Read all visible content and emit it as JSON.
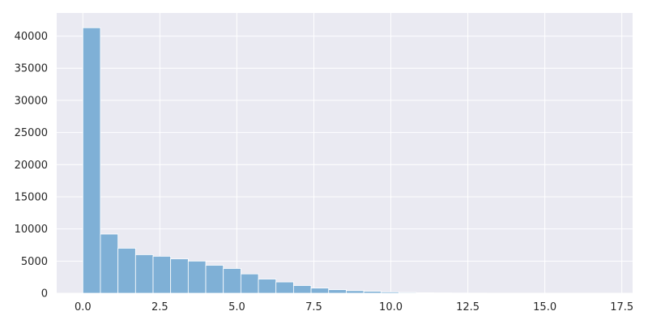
{
  "chart_data": {
    "type": "histogram",
    "title": "",
    "xlabel": "",
    "ylabel": "",
    "xlim": [
      -0.85,
      17.85
    ],
    "ylim": [
      0,
      43600
    ],
    "grid": true,
    "bar_color": "#7fb0d6",
    "background_color": "#eaeaf2",
    "grid_color": "#ffffff",
    "x_ticks": [
      0.0,
      2.5,
      5.0,
      7.5,
      10.0,
      12.5,
      15.0,
      17.5
    ],
    "x_tick_labels": [
      "0.0",
      "2.5",
      "5.0",
      "7.5",
      "10.0",
      "12.5",
      "15.0",
      "17.5"
    ],
    "y_ticks": [
      0,
      5000,
      10000,
      15000,
      20000,
      25000,
      30000,
      35000,
      40000
    ],
    "y_tick_labels": [
      "0",
      "5000",
      "10000",
      "15000",
      "20000",
      "25000",
      "30000",
      "35000",
      "40000"
    ],
    "bin_start": 0.0,
    "bin_width": 0.57,
    "values": [
      41300,
      9200,
      7000,
      6000,
      5750,
      5350,
      5000,
      4350,
      3850,
      3000,
      2200,
      1750,
      1200,
      800,
      550,
      400,
      300,
      200,
      120,
      80,
      50,
      30,
      20,
      10,
      6,
      4,
      3,
      2,
      1,
      1
    ]
  }
}
